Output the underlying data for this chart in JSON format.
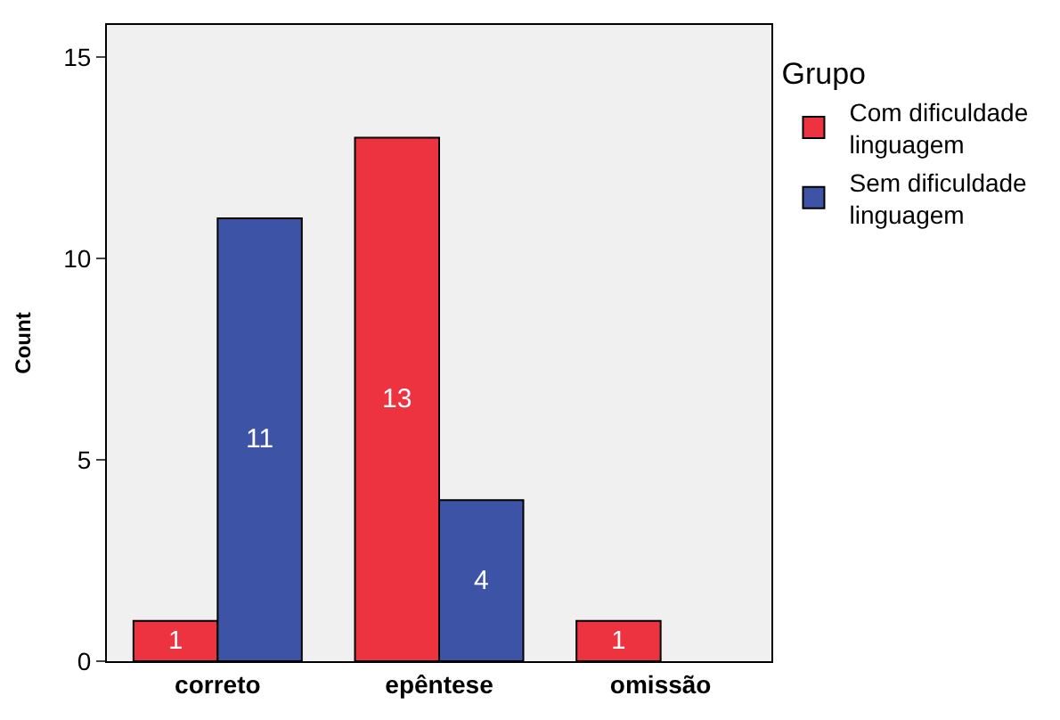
{
  "chart_data": {
    "type": "bar",
    "ylabel": "Count",
    "legend_title": "Grupo",
    "categories": [
      "correto",
      "epêntese",
      "omissão"
    ],
    "series": [
      {
        "name": "Com dificuldade linguagem",
        "color": "#ee3340",
        "values": [
          1,
          13,
          1
        ]
      },
      {
        "name": "Sem dificuldade linguagem",
        "color": "#3d54a6",
        "values": [
          11,
          4,
          null
        ]
      }
    ],
    "ylim": [
      0,
      15.8
    ],
    "yticks": [
      0,
      5,
      10,
      15
    ],
    "grid": false,
    "legend": "right",
    "data_labels": true
  }
}
